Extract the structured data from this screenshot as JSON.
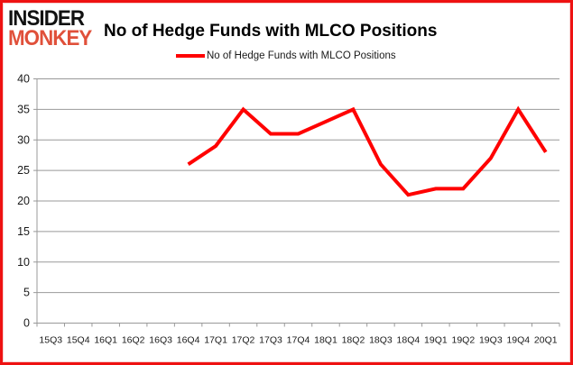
{
  "brand": {
    "line1": "INSIDER",
    "line2": "MONKEY"
  },
  "header": {
    "title": "No of Hedge Funds with MLCO Positions"
  },
  "legend": {
    "label": "No of Hedge Funds with MLCO Positions",
    "line_color": "#ff0000"
  },
  "frame": {
    "border_color": "#ee1212"
  },
  "chart_data": {
    "type": "line",
    "title": "No of Hedge Funds with MLCO Positions",
    "categories": [
      "15Q3",
      "15Q4",
      "16Q1",
      "16Q2",
      "16Q3",
      "16Q4",
      "17Q1",
      "17Q2",
      "17Q3",
      "17Q4",
      "18Q1",
      "18Q2",
      "18Q3",
      "18Q4",
      "19Q1",
      "19Q2",
      "19Q3",
      "19Q4",
      "20Q1"
    ],
    "series": [
      {
        "name": "No of Hedge Funds with MLCO Positions",
        "color": "#ff0000",
        "values": [
          null,
          null,
          null,
          null,
          null,
          26,
          29,
          35,
          31,
          31,
          33,
          35,
          26,
          21,
          22,
          22,
          27,
          35,
          28
        ]
      }
    ],
    "xlabel": "",
    "ylabel": "",
    "ylim": [
      0,
      40
    ],
    "yticks": [
      0,
      5,
      10,
      15,
      20,
      25,
      30,
      35,
      40
    ],
    "grid": true,
    "legend_position": "top",
    "grid_color": "#999999",
    "axis_color": "#999999",
    "tick_label_color": "#1a1a1a"
  }
}
